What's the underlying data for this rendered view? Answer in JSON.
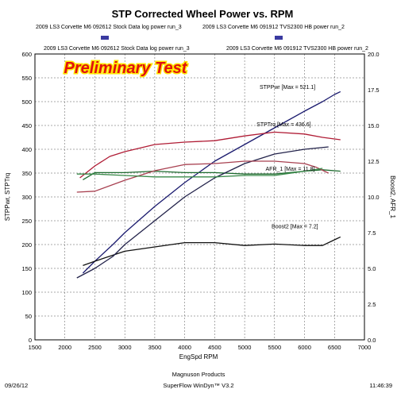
{
  "chart_data": {
    "type": "line",
    "title": "STP Corrected Wheel Power vs. RPM",
    "legend": [
      "2009 LS3 Corvette M6 092612 Stock Data log power run_3",
      "2009 LS3 Corvette M6 091912 TVS2300 HB power run_2"
    ],
    "legend_sub": [
      "2009 LS3 Corvette M6 092612 Stock Data log power run_3",
      "2009 LS3 Corvette M6 091912 TVS2300 HB power run_2"
    ],
    "banner": "Preliminary Test",
    "xlabel": "EngSpd RPM",
    "ylabel_left": "STPPwr, STPTrq",
    "ylabel_right": "Boost2, AFR_1",
    "xlim": [
      1500,
      7000
    ],
    "ylim_left": [
      0,
      600
    ],
    "ylim_right": [
      0,
      20
    ],
    "x_ticks": [
      "1500",
      "2000",
      "2500",
      "3000",
      "3500",
      "4000",
      "4500",
      "5000",
      "5500",
      "6000",
      "6500",
      "7000"
    ],
    "y_left_ticks": [
      "0",
      "50",
      "100",
      "150",
      "200",
      "250",
      "300",
      "350",
      "400",
      "450",
      "500",
      "550",
      "600"
    ],
    "y_right_ticks": [
      "0.0",
      "2.5",
      "5.0",
      "7.5",
      "10.0",
      "12.5",
      "15.0",
      "17.5",
      "20.0"
    ],
    "grid": true,
    "annotations": [
      {
        "text": "STPPwr [Max = 521.1]",
        "x": 5250,
        "y": 527
      },
      {
        "text": "STPTrq [Max = 436.6]",
        "x": 5200,
        "y": 448
      },
      {
        "text": "AFR_1 [Max = 11.8]",
        "x": 5350,
        "y": 355
      },
      {
        "text": "Boost2 [Max = 7.2]",
        "x": 5450,
        "y": 234
      }
    ],
    "series": [
      {
        "name": "STPPwr",
        "axis": "left",
        "color": "#1a1a6e",
        "x": [
          2300,
          2500,
          2800,
          3000,
          3500,
          4000,
          4500,
          5000,
          5500,
          6000,
          6300,
          6500,
          6600
        ],
        "y": [
          140,
          165,
          200,
          225,
          280,
          330,
          375,
          410,
          445,
          480,
          500,
          515,
          521
        ]
      },
      {
        "name": "STPTrq",
        "axis": "left",
        "color": "#b01c35",
        "x": [
          2250,
          2500,
          2750,
          3000,
          3500,
          4000,
          4500,
          5000,
          5500,
          6000,
          6300,
          6600
        ],
        "y": [
          340,
          365,
          385,
          395,
          410,
          415,
          418,
          428,
          436,
          432,
          425,
          420
        ]
      },
      {
        "name": "AFR_1",
        "axis": "right",
        "color": "#1e6b2f",
        "x": [
          2300,
          2500,
          3000,
          3500,
          4000,
          4500,
          5000,
          5500,
          6000,
          6300,
          6600
        ],
        "y": [
          11.2,
          11.7,
          11.7,
          11.8,
          11.7,
          11.7,
          11.6,
          11.6,
          11.8,
          11.9,
          11.8
        ]
      },
      {
        "name": "Boost2",
        "axis": "right",
        "color": "#111111",
        "x": [
          2300,
          2500,
          3000,
          3500,
          4000,
          4500,
          5000,
          5500,
          6000,
          6300,
          6500,
          6600
        ],
        "y": [
          5.2,
          5.5,
          6.2,
          6.5,
          6.8,
          6.8,
          6.6,
          6.7,
          6.6,
          6.6,
          7.0,
          7.2
        ]
      },
      {
        "name": "STPPwr (run_3)",
        "axis": "left",
        "color": "#22224a",
        "x": [
          2200,
          2500,
          2800,
          3000,
          3500,
          4000,
          4500,
          5000,
          5500,
          6000,
          6400
        ],
        "y": [
          130,
          150,
          175,
          200,
          250,
          300,
          340,
          370,
          390,
          400,
          405
        ]
      },
      {
        "name": "STPTrq (run_3)",
        "axis": "left",
        "color": "#a84050",
        "x": [
          2200,
          2500,
          3000,
          3500,
          4000,
          4500,
          5000,
          5500,
          6000,
          6200,
          6400
        ],
        "y": [
          310,
          312,
          335,
          355,
          368,
          370,
          375,
          375,
          370,
          362,
          350
        ]
      },
      {
        "name": "AFR_1 (run_3)",
        "axis": "right",
        "color": "#3a8a4a",
        "x": [
          2200,
          2500,
          3000,
          3500,
          4000,
          4500,
          5000,
          5500,
          6000,
          6300
        ],
        "y": [
          11.6,
          11.6,
          11.5,
          11.4,
          11.4,
          11.4,
          11.5,
          11.5,
          11.8,
          12.0
        ]
      }
    ]
  },
  "footer": {
    "left": "09/26/12",
    "center_line1": "Magnuson Products",
    "center_line2": "SuperFlow WinDyn™ V3.2",
    "right": "11:46:39"
  }
}
